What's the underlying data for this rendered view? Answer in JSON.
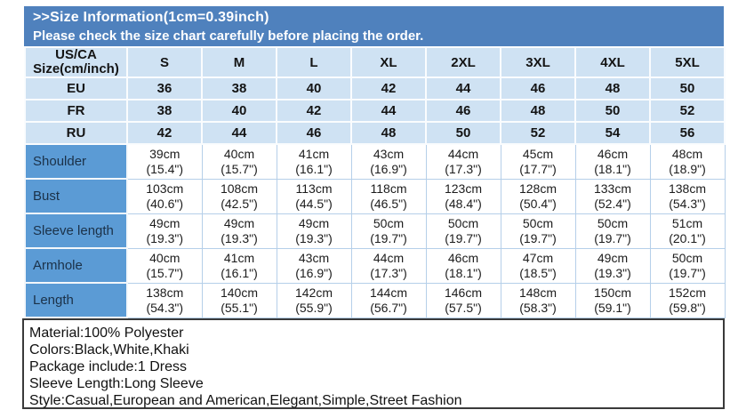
{
  "banner": {
    "line1": ">>Size Information(1cm=0.39inch)",
    "line2": "Please check the size chart carefully before placing the order."
  },
  "size_table": {
    "corner": [
      "US/CA",
      "Size(cm/inch)"
    ],
    "sizes": [
      "S",
      "M",
      "L",
      "XL",
      "2XL",
      "3XL",
      "4XL",
      "5XL"
    ],
    "region_rows": [
      {
        "label": "EU",
        "values": [
          "36",
          "38",
          "40",
          "42",
          "44",
          "46",
          "48",
          "50"
        ]
      },
      {
        "label": "FR",
        "values": [
          "38",
          "40",
          "42",
          "44",
          "46",
          "48",
          "50",
          "52"
        ]
      },
      {
        "label": "RU",
        "values": [
          "42",
          "44",
          "46",
          "48",
          "50",
          "52",
          "54",
          "56"
        ]
      }
    ],
    "measurement_rows": [
      {
        "label": "Shoulder",
        "cells": [
          {
            "cm": "39cm",
            "inch": "(15.4\")"
          },
          {
            "cm": "40cm",
            "inch": "(15.7\")"
          },
          {
            "cm": "41cm",
            "inch": "(16.1\")"
          },
          {
            "cm": "43cm",
            "inch": "(16.9\")"
          },
          {
            "cm": "44cm",
            "inch": "(17.3\")"
          },
          {
            "cm": "45cm",
            "inch": "(17.7\")"
          },
          {
            "cm": "46cm",
            "inch": "(18.1\")"
          },
          {
            "cm": "48cm",
            "inch": "(18.9\")"
          }
        ]
      },
      {
        "label": "Bust",
        "cells": [
          {
            "cm": "103cm",
            "inch": "(40.6\")"
          },
          {
            "cm": "108cm",
            "inch": "(42.5\")"
          },
          {
            "cm": "113cm",
            "inch": "(44.5\")"
          },
          {
            "cm": "118cm",
            "inch": "(46.5\")"
          },
          {
            "cm": "123cm",
            "inch": "(48.4\")"
          },
          {
            "cm": "128cm",
            "inch": "(50.4\")"
          },
          {
            "cm": "133cm",
            "inch": "(52.4\")"
          },
          {
            "cm": "138cm",
            "inch": "(54.3\")"
          }
        ]
      },
      {
        "label": "Sleeve length",
        "cells": [
          {
            "cm": "49cm",
            "inch": "(19.3\")"
          },
          {
            "cm": "49cm",
            "inch": "(19.3\")"
          },
          {
            "cm": "49cm",
            "inch": "(19.3\")"
          },
          {
            "cm": "50cm",
            "inch": "(19.7\")"
          },
          {
            "cm": "50cm",
            "inch": "(19.7\")"
          },
          {
            "cm": "50cm",
            "inch": "(19.7\")"
          },
          {
            "cm": "50cm",
            "inch": "(19.7\")"
          },
          {
            "cm": "51cm",
            "inch": "(20.1\")"
          }
        ]
      },
      {
        "label": "Armhole",
        "cells": [
          {
            "cm": "40cm",
            "inch": "(15.7\")"
          },
          {
            "cm": "41cm",
            "inch": "(16.1\")"
          },
          {
            "cm": "43cm",
            "inch": "(16.9\")"
          },
          {
            "cm": "44cm",
            "inch": "(17.3\")"
          },
          {
            "cm": "46cm",
            "inch": "(18.1\")"
          },
          {
            "cm": "47cm",
            "inch": "(18.5\")"
          },
          {
            "cm": "49cm",
            "inch": "(19.3\")"
          },
          {
            "cm": "50cm",
            "inch": "(19.7\")"
          }
        ]
      },
      {
        "label": "Length",
        "cells": [
          {
            "cm": "138cm",
            "inch": "(54.3\")"
          },
          {
            "cm": "140cm",
            "inch": "(55.1\")"
          },
          {
            "cm": "142cm",
            "inch": "(55.9\")"
          },
          {
            "cm": "144cm",
            "inch": "(56.7\")"
          },
          {
            "cm": "146cm",
            "inch": "(57.5\")"
          },
          {
            "cm": "148cm",
            "inch": "(58.3\")"
          },
          {
            "cm": "150cm",
            "inch": "(59.1\")"
          },
          {
            "cm": "152cm",
            "inch": "(59.8\")"
          }
        ]
      }
    ]
  },
  "product_info": {
    "lines": [
      "Material:100% Polyester",
      "Colors:Black,White,Khaki",
      "Package include:1 Dress",
      "Sleeve Length:Long Sleeve",
      "Style:Casual,European and American,Elegant,Simple,Street Fashion"
    ]
  },
  "colors": {
    "banner_bg": "#4f81bd",
    "banner_text": "#ffffff",
    "header_cell_bg": "#cfe2f3",
    "label_cell_bg": "#5b9bd5",
    "data_cell_bg": "#ffffff",
    "info_border": "#3a3a3a"
  }
}
